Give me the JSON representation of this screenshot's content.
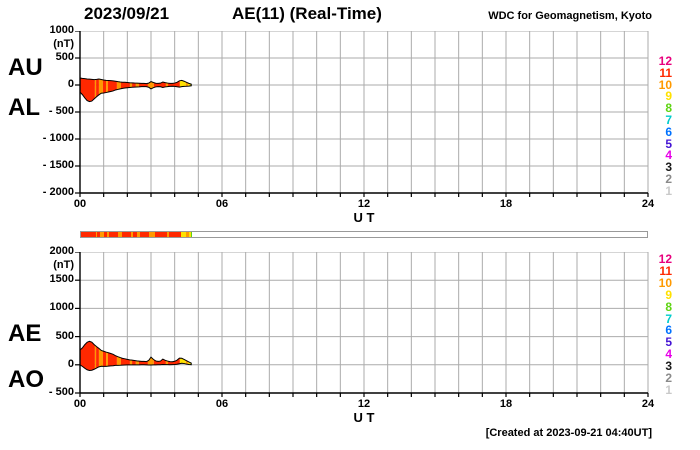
{
  "header": {
    "date": "2023/09/21",
    "title": "AE(11) (Real-Time)",
    "source": "WDC for Geomagnetism, Kyoto"
  },
  "footer": {
    "created": "[Created at 2023-09-21 04:40UT]"
  },
  "station_legend": {
    "counts": [
      12,
      11,
      10,
      9,
      8,
      7,
      6,
      5,
      4,
      3,
      2,
      1
    ],
    "colors": {
      "12": "#E8007D",
      "11": "#FF2800",
      "10": "#FF9900",
      "9": "#FFE100",
      "8": "#5FD414",
      "7": "#00CCCC",
      "6": "#0072FF",
      "5": "#4515D4",
      "4": "#E800E8",
      "3": "#191919",
      "2": "#8A8A8A",
      "1": "#C9C9C9"
    }
  },
  "availability_bar": {
    "xlim": [
      0,
      24
    ],
    "segments": [
      [
        0.0,
        0.63,
        11
      ],
      [
        0.63,
        0.68,
        10
      ],
      [
        0.68,
        0.8,
        11
      ],
      [
        0.8,
        0.97,
        10
      ],
      [
        0.97,
        1.1,
        11
      ],
      [
        1.1,
        1.18,
        10
      ],
      [
        1.18,
        1.56,
        11
      ],
      [
        1.56,
        1.73,
        10
      ],
      [
        1.73,
        2.11,
        11
      ],
      [
        2.11,
        2.2,
        10
      ],
      [
        2.2,
        2.36,
        11
      ],
      [
        2.36,
        2.49,
        10
      ],
      [
        2.49,
        2.87,
        11
      ],
      [
        2.87,
        3.12,
        10
      ],
      [
        3.12,
        3.63,
        11
      ],
      [
        3.63,
        3.72,
        10
      ],
      [
        3.72,
        4.22,
        11
      ],
      [
        4.22,
        4.47,
        9
      ],
      [
        4.47,
        4.56,
        10
      ],
      [
        4.56,
        4.68,
        9
      ],
      [
        4.68,
        4.72,
        8
      ]
    ]
  },
  "chart_data": [
    {
      "type": "area",
      "name": "au-al",
      "title": "AU / AL indices",
      "left_labels": [
        "AU",
        "AL"
      ],
      "ylabel_unit": "(nT)",
      "xlabel": "U T",
      "xlim": [
        0,
        24
      ],
      "xticks": [
        0,
        6,
        12,
        18,
        24
      ],
      "xtick_labels": [
        "00",
        "06",
        "12",
        "18",
        "24"
      ],
      "ylim": [
        -2000,
        1000
      ],
      "ytick_step": 500,
      "ytick_labels": [
        "1000",
        "500",
        "0",
        "- 500",
        "- 1000",
        "- 1500",
        "- 2000"
      ],
      "grid": true,
      "x": [
        0,
        0.1,
        0.2,
        0.3,
        0.4,
        0.5,
        0.6,
        0.7,
        0.8,
        0.9,
        1,
        1.1,
        1.2,
        1.3,
        1.4,
        1.5,
        1.6,
        1.7,
        1.8,
        1.9,
        2,
        2.1,
        2.2,
        2.3,
        2.4,
        2.5,
        2.6,
        2.7,
        2.8,
        2.9,
        3,
        3.1,
        3.2,
        3.3,
        3.4,
        3.5,
        3.6,
        3.7,
        3.8,
        3.9,
        4,
        4.1,
        4.2,
        4.3,
        4.4,
        4.5,
        4.6,
        4.7
      ],
      "series": [
        {
          "name": "AU",
          "values": [
            130,
            122,
            118,
            112,
            108,
            104,
            100,
            104,
            110,
            102,
            92,
            86,
            84,
            80,
            76,
            70,
            62,
            56,
            52,
            50,
            46,
            42,
            40,
            36,
            34,
            32,
            30,
            30,
            26,
            34,
            64,
            46,
            32,
            30,
            34,
            56,
            44,
            36,
            30,
            30,
            36,
            50,
            78,
            86,
            70,
            50,
            30,
            16
          ]
        },
        {
          "name": "AL",
          "values": [
            -132,
            -178,
            -238,
            -288,
            -308,
            -298,
            -258,
            -218,
            -182,
            -152,
            -148,
            -140,
            -130,
            -120,
            -110,
            -92,
            -82,
            -72,
            -62,
            -56,
            -50,
            -46,
            -42,
            -40,
            -36,
            -34,
            -30,
            -30,
            -30,
            -42,
            -72,
            -50,
            -36,
            -30,
            -32,
            -46,
            -36,
            -30,
            -26,
            -24,
            -26,
            -32,
            -40,
            -30,
            -26,
            -24,
            -20,
            -14
          ]
        }
      ]
    },
    {
      "type": "area",
      "name": "ae-ao",
      "title": "AE / AO indices",
      "left_labels": [
        "AE",
        "AO"
      ],
      "ylabel_unit": "(nT)",
      "xlabel": "U T",
      "xlim": [
        0,
        24
      ],
      "xticks": [
        0,
        6,
        12,
        18,
        24
      ],
      "xtick_labels": [
        "00",
        "06",
        "12",
        "18",
        "24"
      ],
      "ylim": [
        -500,
        2000
      ],
      "ytick_step": 500,
      "ytick_labels": [
        "2000",
        "1500",
        "1000",
        "500",
        "0",
        "- 500"
      ],
      "grid": true,
      "x": [
        0,
        0.1,
        0.2,
        0.3,
        0.4,
        0.5,
        0.6,
        0.7,
        0.8,
        0.9,
        1,
        1.1,
        1.2,
        1.3,
        1.4,
        1.5,
        1.6,
        1.7,
        1.8,
        1.9,
        2,
        2.1,
        2.2,
        2.3,
        2.4,
        2.5,
        2.6,
        2.7,
        2.8,
        2.9,
        3,
        3.1,
        3.2,
        3.3,
        3.4,
        3.5,
        3.6,
        3.7,
        3.8,
        3.9,
        4,
        4.1,
        4.2,
        4.3,
        4.4,
        4.5,
        4.6,
        4.7
      ],
      "series": [
        {
          "name": "AE",
          "values": [
            262,
            300,
            356,
            400,
            416,
            402,
            358,
            322,
            292,
            254,
            240,
            226,
            214,
            200,
            186,
            162,
            144,
            128,
            114,
            106,
            96,
            88,
            82,
            76,
            70,
            66,
            60,
            60,
            56,
            76,
            136,
            96,
            68,
            60,
            66,
            102,
            80,
            66,
            56,
            54,
            62,
            82,
            118,
            116,
            96,
            74,
            50,
            30
          ]
        },
        {
          "name": "AO",
          "values": [
            -1,
            -28,
            -60,
            -88,
            -100,
            -97,
            -79,
            -57,
            -36,
            -25,
            -28,
            -27,
            -23,
            -20,
            -17,
            -11,
            -10,
            -8,
            -5,
            -3,
            -2,
            -2,
            -1,
            -2,
            -1,
            -1,
            0,
            0,
            -2,
            -4,
            -4,
            -2,
            -2,
            0,
            1,
            5,
            4,
            3,
            2,
            3,
            5,
            9,
            19,
            28,
            22,
            13,
            5,
            1
          ]
        }
      ]
    }
  ]
}
